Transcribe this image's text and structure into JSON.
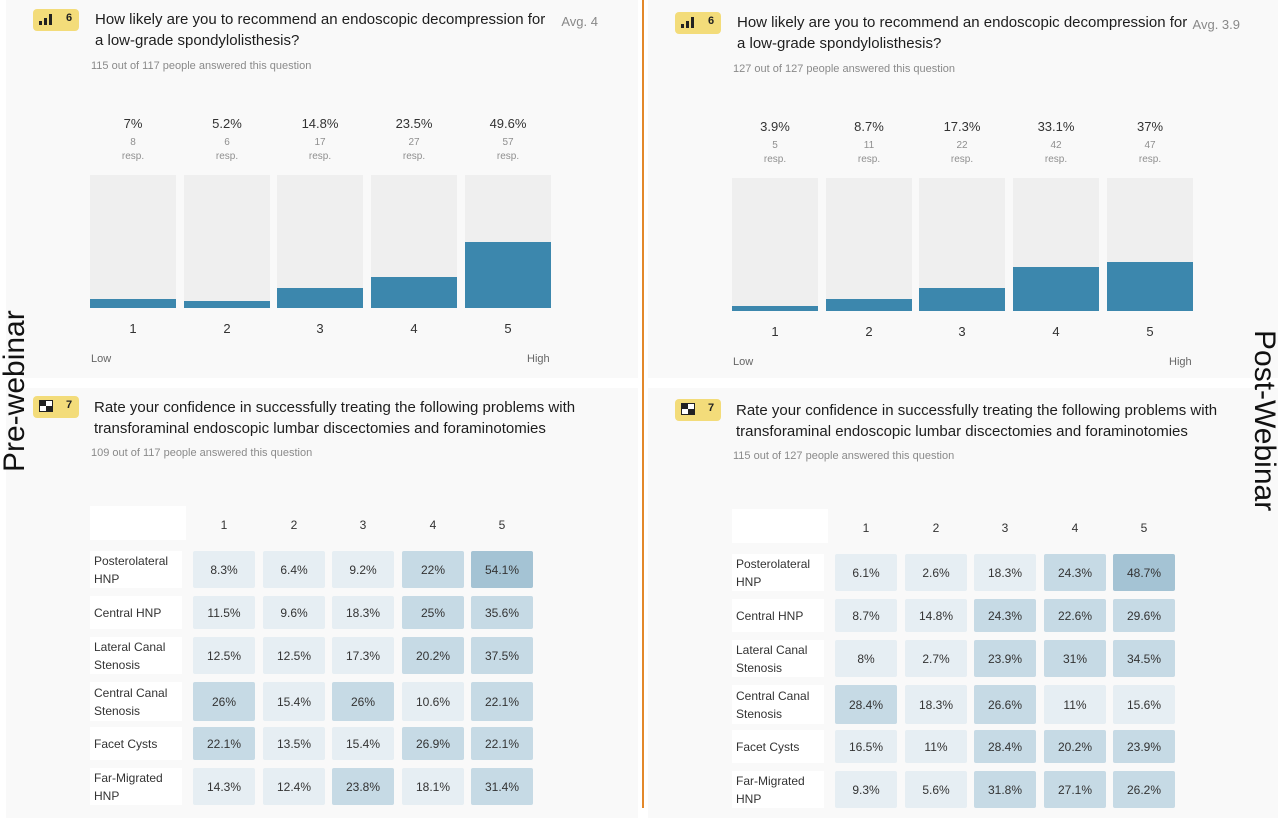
{
  "side_labels": {
    "left": "Pre-webinar",
    "right": "Post-Webinar"
  },
  "colors": {
    "bar": "#3c87ad",
    "bar_track": "#efefef",
    "badge": "#f3dc7a",
    "divider": "#e3882a"
  },
  "panels": {
    "pre_q6": {
      "number": "6",
      "icon": "bar-chart-icon",
      "title": "How likely are you to recommend an endoscopic decompression for a low-grade spondylolisthesis?",
      "avg": "Avg. 4",
      "answered": "115 out of 117 people answered this question",
      "low": "Low",
      "high": "High",
      "bars": [
        {
          "label": "1",
          "pct": "7%",
          "count": "8",
          "unit": "resp.",
          "value": 7
        },
        {
          "label": "2",
          "pct": "5.2%",
          "count": "6",
          "unit": "resp.",
          "value": 5.2
        },
        {
          "label": "3",
          "pct": "14.8%",
          "count": "17",
          "unit": "resp.",
          "value": 14.8
        },
        {
          "label": "4",
          "pct": "23.5%",
          "count": "27",
          "unit": "resp.",
          "value": 23.5
        },
        {
          "label": "5",
          "pct": "49.6%",
          "count": "57",
          "unit": "resp.",
          "value": 49.6
        }
      ]
    },
    "post_q6": {
      "number": "6",
      "icon": "bar-chart-icon",
      "title": "How likely are you to recommend an endoscopic decompression for a low-grade spondylolisthesis?",
      "avg": "Avg. 3.9",
      "answered": "127 out of 127 people answered this question",
      "low": "Low",
      "high": "High",
      "bars": [
        {
          "label": "1",
          "pct": "3.9%",
          "count": "5",
          "unit": "resp.",
          "value": 3.9
        },
        {
          "label": "2",
          "pct": "8.7%",
          "count": "11",
          "unit": "resp.",
          "value": 8.7
        },
        {
          "label": "3",
          "pct": "17.3%",
          "count": "22",
          "unit": "resp.",
          "value": 17.3
        },
        {
          "label": "4",
          "pct": "33.1%",
          "count": "42",
          "unit": "resp.",
          "value": 33.1
        },
        {
          "label": "5",
          "pct": "37%",
          "count": "47",
          "unit": "resp.",
          "value": 37
        }
      ]
    },
    "pre_q7": {
      "number": "7",
      "icon": "matrix-icon",
      "title": "Rate your confidence in successfully treating the following problems with transforaminal endoscopic lumbar discectomies and foraminotomies",
      "answered": "109 out of 117 people answered this question",
      "columns": [
        "1",
        "2",
        "3",
        "4",
        "5"
      ],
      "rows": [
        {
          "label": "Posterolateral HNP",
          "values": [
            "8.3%",
            "6.4%",
            "9.2%",
            "22%",
            "54.1%"
          ]
        },
        {
          "label": "Central HNP",
          "values": [
            "11.5%",
            "9.6%",
            "18.3%",
            "25%",
            "35.6%"
          ]
        },
        {
          "label": "Lateral Canal Stenosis",
          "values": [
            "12.5%",
            "12.5%",
            "17.3%",
            "20.2%",
            "37.5%"
          ]
        },
        {
          "label": "Central Canal Stenosis",
          "values": [
            "26%",
            "15.4%",
            "26%",
            "10.6%",
            "22.1%"
          ]
        },
        {
          "label": "Facet Cysts",
          "values": [
            "22.1%",
            "13.5%",
            "15.4%",
            "26.9%",
            "22.1%"
          ]
        },
        {
          "label": "Far-Migrated HNP",
          "values": [
            "14.3%",
            "12.4%",
            "23.8%",
            "18.1%",
            "31.4%"
          ]
        }
      ]
    },
    "post_q7": {
      "number": "7",
      "icon": "matrix-icon",
      "title": "Rate your confidence in successfully treating the following problems with transforaminal endoscopic lumbar discectomies and foraminotomies",
      "answered": "115 out of 127 people answered this question",
      "columns": [
        "1",
        "2",
        "3",
        "4",
        "5"
      ],
      "rows": [
        {
          "label": "Posterolateral HNP",
          "values": [
            "6.1%",
            "2.6%",
            "18.3%",
            "24.3%",
            "48.7%"
          ]
        },
        {
          "label": "Central HNP",
          "values": [
            "8.7%",
            "14.8%",
            "24.3%",
            "22.6%",
            "29.6%"
          ]
        },
        {
          "label": "Lateral Canal Stenosis",
          "values": [
            "8%",
            "2.7%",
            "23.9%",
            "31%",
            "34.5%"
          ]
        },
        {
          "label": "Central Canal Stenosis",
          "values": [
            "28.4%",
            "18.3%",
            "26.6%",
            "11%",
            "15.6%"
          ]
        },
        {
          "label": "Facet Cysts",
          "values": [
            "16.5%",
            "11%",
            "28.4%",
            "20.2%",
            "23.9%"
          ]
        },
        {
          "label": "Far-Migrated HNP",
          "values": [
            "9.3%",
            "5.6%",
            "31.8%",
            "27.1%",
            "26.2%"
          ]
        }
      ]
    }
  },
  "chart_data": [
    {
      "type": "bar",
      "title": "How likely are you to recommend an endoscopic decompression for a low-grade spondylolisthesis?",
      "categories": [
        "1",
        "2",
        "3",
        "4",
        "5"
      ],
      "values": [
        7,
        5.2,
        14.8,
        23.5,
        49.6
      ],
      "counts": [
        8,
        6,
        17,
        27,
        57
      ],
      "ylim": [
        0,
        100
      ],
      "xlabel": "",
      "ylabel": ""
    },
    {
      "type": "bar",
      "title": "How likely are you to recommend an endoscopic decompression for a low-grade spondylolisthesis?",
      "categories": [
        "1",
        "2",
        "3",
        "4",
        "5"
      ],
      "values": [
        3.9,
        8.7,
        17.3,
        33.1,
        37
      ],
      "counts": [
        5,
        11,
        22,
        42,
        47
      ],
      "ylim": [
        0,
        100
      ],
      "xlabel": "",
      "ylabel": ""
    },
    {
      "type": "heatmap",
      "title": "Rate your confidence in successfully treating the following problems with transforaminal endoscopic lumbar discectomies and foraminotomies",
      "x": [
        "1",
        "2",
        "3",
        "4",
        "5"
      ],
      "y": [
        "Posterolateral HNP",
        "Central HNP",
        "Lateral Canal Stenosis",
        "Central Canal Stenosis",
        "Facet Cysts",
        "Far-Migrated HNP"
      ],
      "values": [
        [
          8.3,
          6.4,
          9.2,
          22,
          54.1
        ],
        [
          11.5,
          9.6,
          18.3,
          25,
          35.6
        ],
        [
          12.5,
          12.5,
          17.3,
          20.2,
          37.5
        ],
        [
          26,
          15.4,
          26,
          10.6,
          22.1
        ],
        [
          22.1,
          13.5,
          15.4,
          26.9,
          22.1
        ],
        [
          14.3,
          12.4,
          23.8,
          18.1,
          31.4
        ]
      ]
    },
    {
      "type": "heatmap",
      "title": "Rate your confidence in successfully treating the following problems with transforaminal endoscopic lumbar discectomies and foraminotomies",
      "x": [
        "1",
        "2",
        "3",
        "4",
        "5"
      ],
      "y": [
        "Posterolateral HNP",
        "Central HNP",
        "Lateral Canal Stenosis",
        "Central Canal Stenosis",
        "Facet Cysts",
        "Far-Migrated HNP"
      ],
      "values": [
        [
          6.1,
          2.6,
          18.3,
          24.3,
          48.7
        ],
        [
          8.7,
          14.8,
          24.3,
          22.6,
          29.6
        ],
        [
          8,
          2.7,
          23.9,
          31,
          34.5
        ],
        [
          28.4,
          18.3,
          26.6,
          11,
          15.6
        ],
        [
          16.5,
          11,
          28.4,
          20.2,
          23.9
        ],
        [
          9.3,
          5.6,
          31.8,
          27.1,
          26.2
        ]
      ]
    }
  ]
}
